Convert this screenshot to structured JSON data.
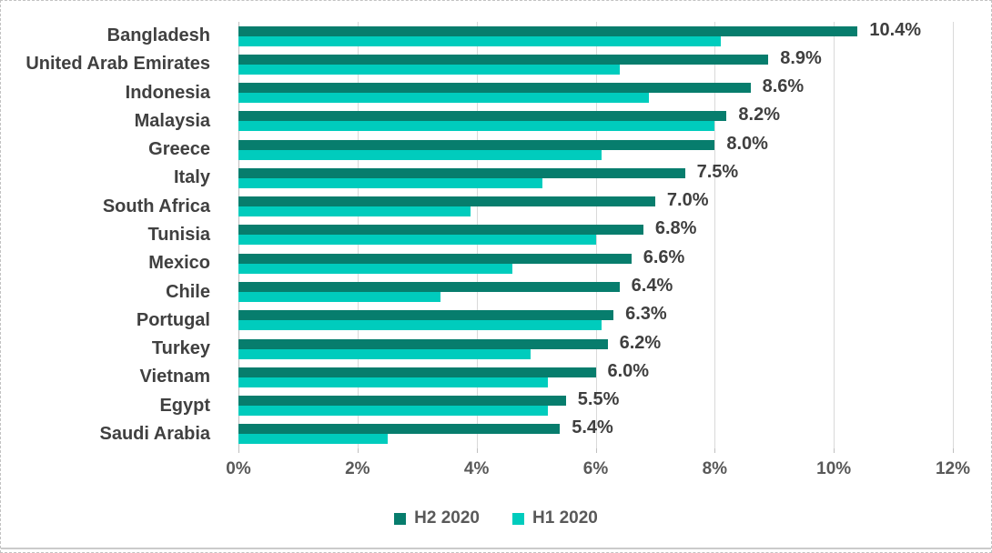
{
  "window": {
    "background": "#ffffff",
    "border_color": "#c2c2c2"
  },
  "chart_data": {
    "type": "bar",
    "orientation": "horizontal",
    "title": "",
    "categories": [
      "Bangladesh",
      "United Arab Emirates",
      "Indonesia",
      "Malaysia",
      "Greece",
      "Italy",
      "South Africa",
      "Tunisia",
      "Mexico",
      "Chile",
      "Portugal",
      "Turkey",
      "Vietnam",
      "Egypt",
      "Saudi Arabia"
    ],
    "series": [
      {
        "name": "H2 2020",
        "color": "#077d6d",
        "values": [
          10.4,
          8.9,
          8.6,
          8.2,
          8.0,
          7.5,
          7.0,
          6.8,
          6.6,
          6.4,
          6.3,
          6.2,
          6.0,
          5.5,
          5.4
        ],
        "data_labels": [
          "10.4%",
          "8.9%",
          "8.6%",
          "8.2%",
          "8.0%",
          "7.5%",
          "7.0%",
          "6.8%",
          "6.6%",
          "6.4%",
          "6.3%",
          "6.2%",
          "6.0%",
          "5.5%",
          "5.4%"
        ]
      },
      {
        "name": "H1 2020",
        "color": "#00ccbd",
        "values": [
          8.1,
          6.4,
          6.9,
          8.0,
          6.1,
          5.1,
          3.9,
          6.0,
          4.6,
          3.4,
          6.1,
          4.9,
          5.2,
          5.2,
          2.5
        ],
        "data_labels": []
      }
    ],
    "x_ticks": [
      "0%",
      "2%",
      "4%",
      "6%",
      "8%",
      "10%",
      "12%"
    ],
    "xlim": [
      0,
      12
    ],
    "grid": "vertical",
    "legend_position": "bottom-center",
    "legend": [
      "H2 2020",
      "H1 2020"
    ],
    "colors": {
      "gridline": "#d9d9d9",
      "axis": "#bfbfbf",
      "category_label": "#404040",
      "data_label": "#3f3f3f",
      "tick_label": "#595959",
      "legend_label": "#595959"
    }
  }
}
